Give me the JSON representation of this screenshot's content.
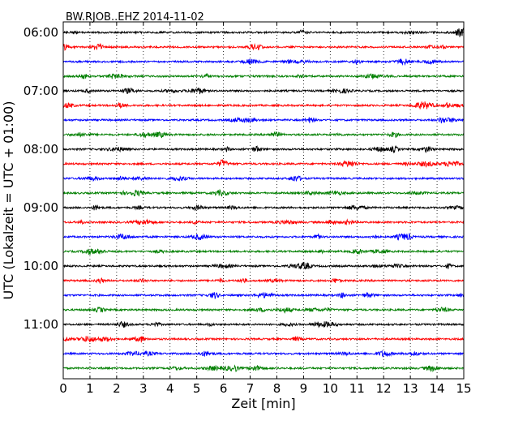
{
  "chart_data": {
    "type": "line",
    "title": "BW.RJOB..EHZ 2014-11-02",
    "xlabel": "Zeit  [min]",
    "ylabel": "UTC (Lokalzeit = UTC + 01:00)",
    "xlim": [
      0,
      15
    ],
    "xticks": [
      "0",
      "1",
      "2",
      "3",
      "4",
      "5",
      "6",
      "7",
      "8",
      "9",
      "10",
      "11",
      "12",
      "13",
      "14",
      "15"
    ],
    "yticks": [
      {
        "label": "06:00",
        "row": 0
      },
      {
        "label": "07:00",
        "row": 4
      },
      {
        "label": "08:00",
        "row": 8
      },
      {
        "label": "09:00",
        "row": 12
      },
      {
        "label": "10:00",
        "row": 16
      },
      {
        "label": "11:00",
        "row": 20
      }
    ],
    "rows": 24,
    "row_interval_minutes": 15,
    "first_row_time": "06:00",
    "grid": "vertical dotted at each minute",
    "colors": [
      "#000000",
      "#ff0000",
      "#0000ff",
      "#007f00"
    ],
    "series": [
      {
        "time": "06:00",
        "color": "#000000"
      },
      {
        "time": "06:15",
        "color": "#ff0000"
      },
      {
        "time": "06:30",
        "color": "#0000ff"
      },
      {
        "time": "06:45",
        "color": "#007f00"
      },
      {
        "time": "07:00",
        "color": "#000000"
      },
      {
        "time": "07:15",
        "color": "#ff0000"
      },
      {
        "time": "07:30",
        "color": "#0000ff"
      },
      {
        "time": "07:45",
        "color": "#007f00"
      },
      {
        "time": "08:00",
        "color": "#000000"
      },
      {
        "time": "08:15",
        "color": "#ff0000"
      },
      {
        "time": "08:30",
        "color": "#0000ff"
      },
      {
        "time": "08:45",
        "color": "#007f00"
      },
      {
        "time": "09:00",
        "color": "#000000"
      },
      {
        "time": "09:15",
        "color": "#ff0000"
      },
      {
        "time": "09:30",
        "color": "#0000ff"
      },
      {
        "time": "09:45",
        "color": "#007f00"
      },
      {
        "time": "10:00",
        "color": "#000000"
      },
      {
        "time": "10:15",
        "color": "#ff0000"
      },
      {
        "time": "10:30",
        "color": "#0000ff"
      },
      {
        "time": "10:45",
        "color": "#007f00"
      },
      {
        "time": "11:00",
        "color": "#000000"
      },
      {
        "time": "11:15",
        "color": "#ff0000"
      },
      {
        "time": "11:30",
        "color": "#0000ff"
      },
      {
        "time": "11:45",
        "color": "#007f00"
      }
    ]
  }
}
